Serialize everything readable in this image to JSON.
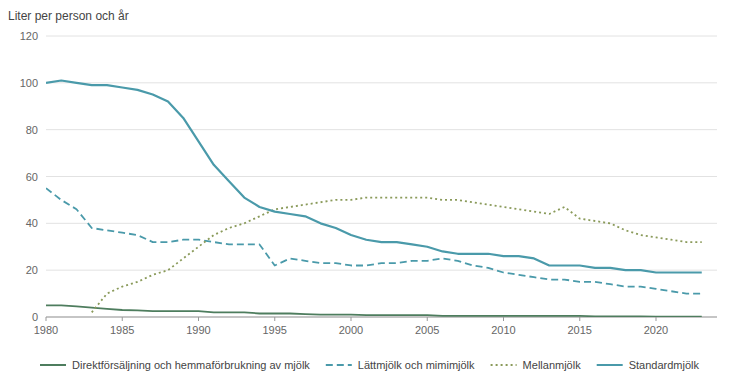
{
  "chart_data": {
    "type": "line",
    "ylabel": "Liter per person och år",
    "x": [
      1980,
      1981,
      1982,
      1983,
      1984,
      1985,
      1986,
      1987,
      1988,
      1989,
      1990,
      1991,
      1992,
      1993,
      1994,
      1995,
      1996,
      1997,
      1998,
      1999,
      2000,
      2001,
      2002,
      2003,
      2004,
      2005,
      2006,
      2007,
      2008,
      2009,
      2010,
      2011,
      2012,
      2013,
      2014,
      2015,
      2016,
      2017,
      2018,
      2019,
      2020,
      2021,
      2022,
      2023
    ],
    "xlim": [
      1980,
      2024
    ],
    "ylim": [
      0,
      120
    ],
    "xticks": [
      1980,
      1985,
      1990,
      1995,
      2000,
      2005,
      2010,
      2015,
      2020
    ],
    "yticks": [
      0,
      20,
      40,
      60,
      80,
      100,
      120
    ],
    "grid": true,
    "legend": "bottom",
    "series": [
      {
        "name": "Direktförsäljning och hemmaförbrukning av mjölk",
        "color": "#4e7d5e",
        "line_style": "solid",
        "values": [
          5,
          5,
          4.5,
          4,
          3.5,
          3,
          2.8,
          2.5,
          2.5,
          2.5,
          2.5,
          2,
          2,
          2,
          1.5,
          1.5,
          1.5,
          1.2,
          1,
          1,
          1,
          0.8,
          0.8,
          0.8,
          0.8,
          0.8,
          0.5,
          0.5,
          0.5,
          0.5,
          0.5,
          0.5,
          0.5,
          0.5,
          0.5,
          0.5,
          0.3,
          0.3,
          0.3,
          0.3,
          0.2,
          0.2,
          0.2,
          0.2
        ]
      },
      {
        "name": "Lättmjölk och mimimjölk",
        "color": "#4a9aaa",
        "line_style": "dashed",
        "values": [
          55,
          50,
          46,
          38,
          37,
          36,
          35,
          32,
          32,
          33,
          33,
          32,
          31,
          31,
          31,
          22,
          25,
          24,
          23,
          23,
          22,
          22,
          23,
          23,
          24,
          24,
          25,
          24,
          22,
          21,
          19,
          18,
          17,
          16,
          16,
          15,
          15,
          14,
          13,
          13,
          12,
          11,
          10,
          10
        ]
      },
      {
        "name": "Mellanmjölk",
        "color": "#8a9a5a",
        "line_style": "dotted",
        "values": [
          null,
          null,
          null,
          2,
          10,
          13,
          15,
          18,
          20,
          25,
          30,
          35,
          38,
          40,
          43,
          46,
          47,
          48,
          49,
          50,
          50,
          51,
          51,
          51,
          51,
          51,
          50,
          50,
          49,
          48,
          47,
          46,
          45,
          44,
          47,
          42,
          41,
          40,
          37,
          35,
          34,
          33,
          32,
          32
        ]
      },
      {
        "name": "Standardmjölk",
        "color": "#4a9aaa",
        "line_style": "solid",
        "values": [
          100,
          101,
          100,
          99,
          99,
          98,
          97,
          95,
          92,
          85,
          75,
          65,
          58,
          51,
          47,
          45,
          44,
          43,
          40,
          38,
          35,
          33,
          32,
          32,
          31,
          30,
          28,
          27,
          27,
          27,
          26,
          26,
          25,
          22,
          22,
          22,
          21,
          21,
          20,
          20,
          19,
          19,
          19,
          19
        ]
      }
    ]
  }
}
